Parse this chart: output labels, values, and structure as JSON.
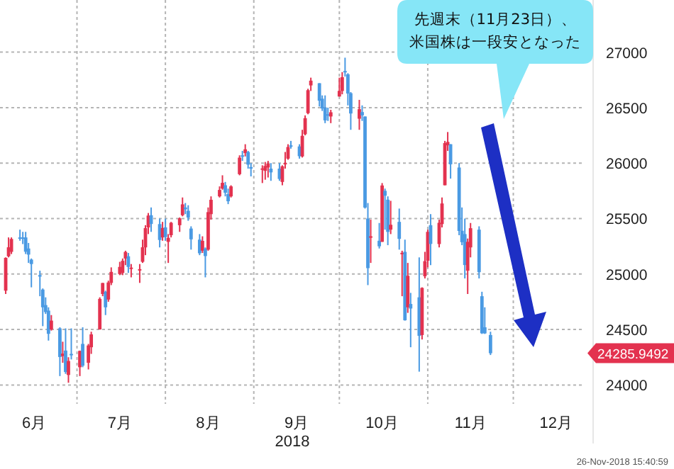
{
  "chart_data": {
    "type": "candlestick",
    "annotations": [
      "先週末（11月23日）、米国株は一段安となった",
      "24285.9492",
      "26-Nov-2018 15:40:59"
    ],
    "xlabel": "2018",
    "colors": [
      "#e3324f",
      "#e3324f",
      "#e3324f",
      "#4a9ae3",
      "#4a9ae3",
      "#4a9ae3",
      "#4a9ae3",
      "#4a9ae3",
      "#4a9ae3",
      "#4a9ae3",
      "#4a9ae3",
      "#4a9ae3",
      "#e3324f",
      "#4a9ae3",
      "#e3324f",
      "#4a9ae3",
      "#e3324f",
      "#4a9ae3",
      "#e3324f",
      "#4a9ae3",
      "#e3324f",
      "#e3324f",
      "#e3324f",
      "#e3324f",
      "#4a9ae3",
      "#e3324f",
      "#e3324f",
      "#e3324f",
      "#e3324f",
      "#e3324f",
      "#4a9ae3",
      "#e3324f",
      "#e3324f",
      "#e3324f",
      "#e3324f",
      "#e3324f",
      "#4a9ae3",
      "#4a9ae3",
      "#e3324f",
      "#4a9ae3",
      "#e3324f",
      "#e3324f",
      "#e3324f",
      "#e3324f",
      "#4a9ae3",
      "#4a9ae3",
      "#4a9ae3",
      "#4a9ae3",
      "#e3324f",
      "#4a9ae3",
      "#e3324f",
      "#e3324f",
      "#e3324f",
      "#e3324f",
      "#4a9ae3",
      "#4a9ae3",
      "#e3324f",
      "#e3324f",
      "#4a9ae3",
      "#e3324f",
      "#4a9ae3",
      "#4a9ae3",
      "#e3324f",
      "#e3324f",
      "#e3324f",
      "#4a9ae3",
      "#4a9ae3",
      "#e3324f",
      "#e3324f",
      "#e3324f",
      "#4a9ae3",
      "#4a9ae3",
      "#e3324f",
      "#e3324f",
      "#e3324f",
      "#e3324f",
      "#4a9ae3",
      "#4a9ae3",
      "#4a9ae3",
      "#4a9ae3",
      "#e3324f",
      "#e3324f",
      "#e3324f",
      "#4a9ae3",
      "#4a9ae3",
      "#4a9ae3",
      "#e3324f",
      "#4a9ae3",
      "#4a9ae3",
      "#4a9ae3",
      "#e3324f",
      "#4a9ae3",
      "#e3324f",
      "#4a9ae3",
      "#4a9ae3",
      "#e3324f",
      "#4a9ae3",
      "#e3324f",
      "#4a9ae3",
      "#e3324f",
      "#4a9ae3",
      "#4a9ae3",
      "#e3324f",
      "#e3324f",
      "#e3324f",
      "#4a9ae3",
      "#e3324f",
      "#e3324f",
      "#e3324f",
      "#e3324f",
      "#4a9ae3",
      "#4a9ae3",
      "#4a9ae3",
      "#4a9ae3",
      "#e3324f",
      "#e3324f",
      "#4a9ae3",
      "#4a9ae3",
      "#4a9ae3",
      "#4a9ae3"
    ],
    "xlim": [
      "2018-06-04",
      "2018-12-26"
    ],
    "xticks": [
      {
        "value": "2018-06-16",
        "label": "6月"
      },
      {
        "value": "2018-07-01",
        "label": null
      },
      {
        "value": "2018-07-16",
        "label": "7月"
      },
      {
        "value": "2018-08-01",
        "label": null
      },
      {
        "value": "2018-08-16",
        "label": "8月"
      },
      {
        "value": "2018-09-01",
        "label": null
      },
      {
        "value": "2018-09-16",
        "label": "9月"
      },
      {
        "value": "2018-10-01",
        "label": null
      },
      {
        "value": "2018-10-16",
        "label": "10月"
      },
      {
        "value": "2018-11-01",
        "label": null
      },
      {
        "value": "2018-11-16",
        "label": "11月"
      },
      {
        "value": "2018-12-01",
        "label": null
      },
      {
        "value": "2018-12-16",
        "label": "12月"
      }
    ],
    "ylim": [
      23830,
      27470
    ],
    "yticks": [
      24000,
      24500,
      25000,
      25500,
      26000,
      26500,
      27000
    ],
    "grid": true,
    "x": [
      "2018-06-06",
      "2018-06-07",
      "2018-06-08",
      "2018-06-11",
      "2018-06-12",
      "2018-06-13",
      "2018-06-14",
      "2018-06-15",
      "2018-06-18",
      "2018-06-19",
      "2018-06-20",
      "2018-06-21",
      "2018-06-22",
      "2018-06-25",
      "2018-06-26",
      "2018-06-27",
      "2018-06-28",
      "2018-06-29",
      "2018-07-02",
      "2018-07-03",
      "2018-07-05",
      "2018-07-06",
      "2018-07-09",
      "2018-07-10",
      "2018-07-11",
      "2018-07-12",
      "2018-07-13",
      "2018-07-16",
      "2018-07-17",
      "2018-07-18",
      "2018-07-19",
      "2018-07-20",
      "2018-07-23",
      "2018-07-24",
      "2018-07-25",
      "2018-07-26",
      "2018-07-27",
      "2018-07-30",
      "2018-07-31",
      "2018-08-01",
      "2018-08-02",
      "2018-08-03",
      "2018-08-06",
      "2018-08-07",
      "2018-08-08",
      "2018-08-09",
      "2018-08-10",
      "2018-08-13",
      "2018-08-14",
      "2018-08-15",
      "2018-08-16",
      "2018-08-17",
      "2018-08-20",
      "2018-08-21",
      "2018-08-22",
      "2018-08-23",
      "2018-08-24",
      "2018-08-27",
      "2018-08-28",
      "2018-08-29",
      "2018-08-30",
      "2018-08-31",
      "2018-09-04",
      "2018-09-05",
      "2018-09-06",
      "2018-09-07",
      "2018-09-10",
      "2018-09-11",
      "2018-09-12",
      "2018-09-13",
      "2018-09-14",
      "2018-09-17",
      "2018-09-18",
      "2018-09-19",
      "2018-09-20",
      "2018-09-21",
      "2018-09-24",
      "2018-09-25",
      "2018-09-26",
      "2018-09-27",
      "2018-09-28",
      "2018-10-01",
      "2018-10-02",
      "2018-10-03",
      "2018-10-04",
      "2018-10-05",
      "2018-10-08",
      "2018-10-09",
      "2018-10-10",
      "2018-10-11",
      "2018-10-12",
      "2018-10-15",
      "2018-10-16",
      "2018-10-17",
      "2018-10-18",
      "2018-10-19",
      "2018-10-22",
      "2018-10-23",
      "2018-10-24",
      "2018-10-25",
      "2018-10-26",
      "2018-10-29",
      "2018-10-30",
      "2018-10-31",
      "2018-11-01",
      "2018-11-02",
      "2018-11-05",
      "2018-11-06",
      "2018-11-07",
      "2018-11-08",
      "2018-11-09",
      "2018-11-12",
      "2018-11-13",
      "2018-11-14",
      "2018-11-15",
      "2018-11-16",
      "2018-11-19",
      "2018-11-20",
      "2018-11-21",
      "2018-11-23"
    ],
    "ohlc": [
      [
        24850,
        25150,
        24820,
        25146
      ],
      [
        25160,
        25330,
        25150,
        25241
      ],
      [
        25200,
        25330,
        25180,
        25316
      ],
      [
        25330,
        25400,
        25300,
        25322
      ],
      [
        25330,
        25380,
        25270,
        25320
      ],
      [
        25330,
        25380,
        25180,
        25201
      ],
      [
        25230,
        25280,
        25100,
        25175
      ],
      [
        25130,
        25140,
        24880,
        25090
      ],
      [
        24990,
        25030,
        24800,
        24987
      ],
      [
        24860,
        24870,
        24530,
        24700
      ],
      [
        24720,
        24790,
        24640,
        24657
      ],
      [
        24670,
        24700,
        24400,
        24461
      ],
      [
        24500,
        24630,
        24490,
        24580
      ],
      [
        24510,
        24520,
        24080,
        24252
      ],
      [
        24260,
        24390,
        24200,
        24283
      ],
      [
        24310,
        24510,
        24100,
        24117
      ],
      [
        24090,
        24250,
        24020,
        24216
      ],
      [
        24280,
        24510,
        24230,
        24271
      ],
      [
        24160,
        24310,
        24080,
        24307
      ],
      [
        24370,
        24520,
        24160,
        24174
      ],
      [
        24200,
        24370,
        24140,
        24356
      ],
      [
        24340,
        24480,
        24280,
        24456
      ],
      [
        24500,
        24790,
        24500,
        24776
      ],
      [
        24820,
        24920,
        24800,
        24919
      ],
      [
        24840,
        24850,
        24630,
        24700
      ],
      [
        24770,
        24940,
        24750,
        24924
      ],
      [
        24920,
        25060,
        24900,
        25019
      ],
      [
        25000,
        25110,
        24990,
        25064
      ],
      [
        25010,
        25140,
        24990,
        25119
      ],
      [
        25140,
        25210,
        25080,
        25199
      ],
      [
        25160,
        25190,
        25010,
        25064
      ],
      [
        25050,
        25090,
        24970,
        25058
      ],
      [
        25040,
        25090,
        24920,
        25044
      ],
      [
        25110,
        25310,
        25100,
        25241
      ],
      [
        25240,
        25440,
        25170,
        25414
      ],
      [
        25420,
        25550,
        25360,
        25527
      ],
      [
        25530,
        25600,
        25380,
        25451
      ],
      [
        25450,
        25500,
        25240,
        25307
      ],
      [
        25330,
        25470,
        25300,
        25415
      ],
      [
        25420,
        25500,
        25300,
        25333
      ],
      [
        25290,
        25360,
        25100,
        25326
      ],
      [
        25350,
        25470,
        25330,
        25462
      ],
      [
        25440,
        25510,
        25380,
        25502
      ],
      [
        25530,
        25690,
        25520,
        25628
      ],
      [
        25600,
        25640,
        25540,
        25583
      ],
      [
        25570,
        25620,
        25480,
        25509
      ],
      [
        25410,
        25430,
        25220,
        25313
      ],
      [
        25310,
        25360,
        25170,
        25187
      ],
      [
        25210,
        25340,
        25190,
        25299
      ],
      [
        25230,
        25240,
        24970,
        25162
      ],
      [
        25220,
        25600,
        25210,
        25558
      ],
      [
        25540,
        25700,
        25490,
        25669
      ],
      [
        25700,
        25790,
        25690,
        25758
      ],
      [
        25770,
        25890,
        25760,
        25822
      ],
      [
        25800,
        25830,
        25700,
        25733
      ],
      [
        25720,
        25770,
        25630,
        25656
      ],
      [
        25700,
        25800,
        25690,
        25790
      ],
      [
        25900,
        26070,
        25890,
        26049
      ],
      [
        26070,
        26110,
        26020,
        26064
      ],
      [
        26090,
        26170,
        26060,
        26124
      ],
      [
        26100,
        26110,
        25950,
        25986
      ],
      [
        25950,
        26000,
        25880,
        25964
      ],
      [
        25950,
        25980,
        25820,
        25952
      ],
      [
        25930,
        26010,
        25850,
        25974
      ],
      [
        25960,
        26020,
        25870,
        25995
      ],
      [
        25950,
        26000,
        25840,
        25916
      ],
      [
        25950,
        26000,
        25840,
        25857
      ],
      [
        25830,
        25980,
        25800,
        25971
      ],
      [
        25990,
        26100,
        25950,
        26001
      ],
      [
        26040,
        26170,
        26030,
        26145
      ],
      [
        26160,
        26200,
        26130,
        26154
      ],
      [
        26150,
        26170,
        26040,
        26062
      ],
      [
        26060,
        26300,
        26050,
        26246
      ],
      [
        26260,
        26430,
        26250,
        26405
      ],
      [
        26450,
        26670,
        26440,
        26657
      ],
      [
        26700,
        26770,
        26650,
        26743
      ],
      [
        26720,
        26720,
        26510,
        26562
      ],
      [
        26580,
        26610,
        26470,
        26492
      ],
      [
        26500,
        26610,
        26360,
        26385
      ],
      [
        26440,
        26500,
        26380,
        26439
      ],
      [
        26420,
        26480,
        26360,
        26458
      ],
      [
        26600,
        26770,
        26600,
        26651
      ],
      [
        26650,
        26820,
        26620,
        26774
      ],
      [
        26830,
        26950,
        26780,
        26828
      ],
      [
        26800,
        26810,
        26520,
        26627
      ],
      [
        26630,
        26640,
        26300,
        26447
      ],
      [
        26400,
        26570,
        26300,
        26486
      ],
      [
        26460,
        26520,
        26380,
        26430
      ],
      [
        26420,
        26420,
        25590,
        25599
      ],
      [
        25500,
        25640,
        24900,
        25053
      ],
      [
        25340,
        25490,
        25100,
        25340
      ],
      [
        25300,
        25460,
        25230,
        25250
      ],
      [
        25290,
        25820,
        25290,
        25798
      ],
      [
        25750,
        25770,
        25400,
        25706
      ],
      [
        25670,
        25700,
        25260,
        25380
      ],
      [
        25400,
        25660,
        25360,
        25444
      ],
      [
        25470,
        25590,
        25220,
        25317
      ],
      [
        25180,
        25210,
        24800,
        25191
      ],
      [
        25200,
        25310,
        24580,
        24583
      ],
      [
        24700,
        25100,
        24650,
        24984
      ],
      [
        24730,
        24830,
        24340,
        24689
      ],
      [
        24790,
        25150,
        24120,
        24443
      ],
      [
        24450,
        24880,
        24410,
        24875
      ],
      [
        24980,
        25200,
        24960,
        25116
      ],
      [
        25120,
        25400,
        25060,
        25380
      ],
      [
        25440,
        25540,
        25080,
        25271
      ],
      [
        25270,
        25490,
        25240,
        25462
      ],
      [
        25450,
        25690,
        25420,
        25636
      ],
      [
        25800,
        26200,
        25800,
        26180
      ],
      [
        26160,
        26280,
        26110,
        26191
      ],
      [
        26170,
        26170,
        25860,
        25989
      ],
      [
        25960,
        26000,
        25350,
        25388
      ],
      [
        25390,
        25600,
        25260,
        25287
      ],
      [
        25360,
        25500,
        24960,
        25081
      ],
      [
        25030,
        25320,
        24820,
        25290
      ],
      [
        25240,
        25460,
        25150,
        25413
      ],
      [
        25400,
        25430,
        24960,
        25017
      ],
      [
        24800,
        24840,
        24460,
        24466
      ],
      [
        24520,
        24700,
        24460,
        24465
      ],
      [
        24450,
        24480,
        24270,
        24286
      ]
    ]
  }
}
